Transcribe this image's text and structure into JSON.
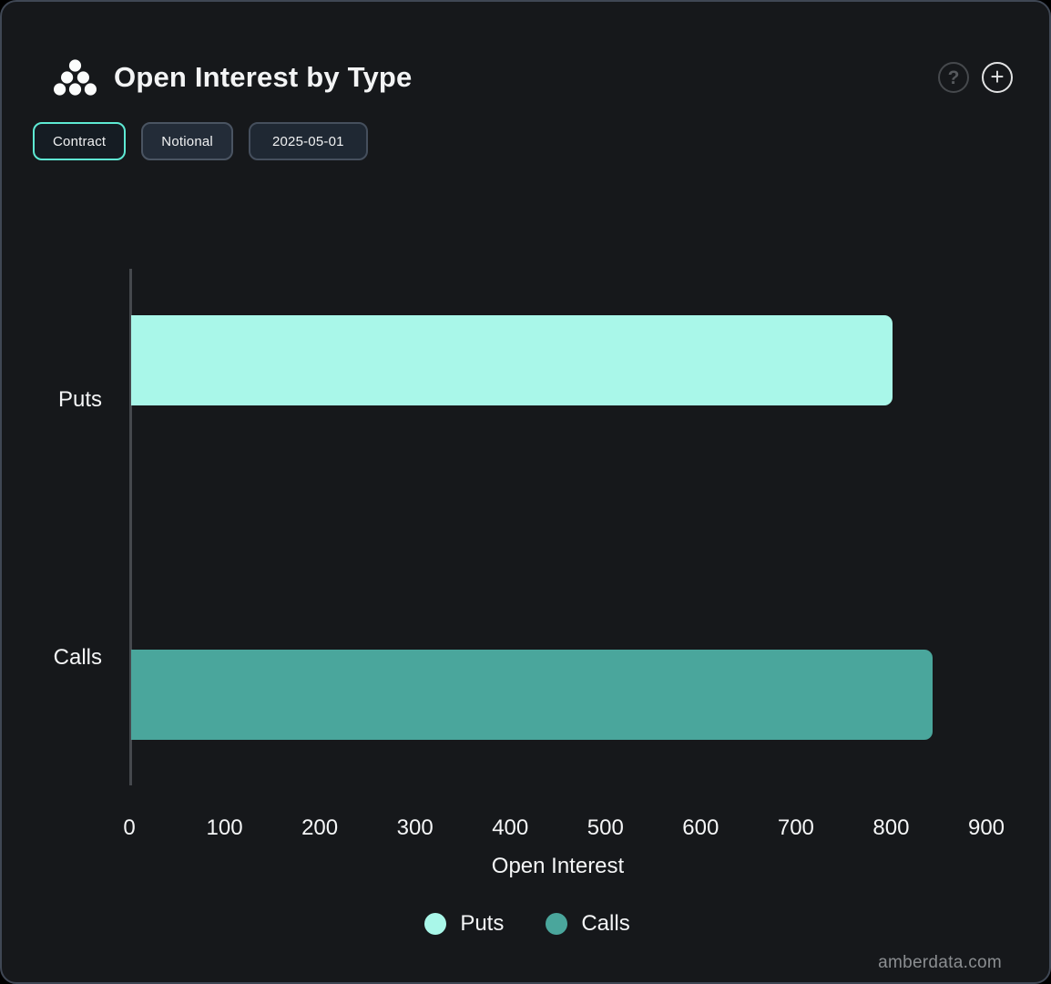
{
  "header": {
    "title": "Open Interest by Type",
    "help_icon": "?",
    "add_icon": "+"
  },
  "controls": {
    "unit_toggle": [
      {
        "label": "Contract",
        "active": true
      },
      {
        "label": "Notional",
        "active": false
      }
    ],
    "date": "2025-05-01"
  },
  "chart_data": {
    "type": "bar",
    "orientation": "horizontal",
    "title": "Open Interest by Type",
    "categories": [
      "Puts",
      "Calls"
    ],
    "values": [
      800,
      842
    ],
    "colors": [
      "#a9f7e9",
      "#4aa69c"
    ],
    "xlabel": "Open Interest",
    "ylabel": "",
    "xlim": [
      0,
      900
    ],
    "xticks": [
      0,
      100,
      200,
      300,
      400,
      500,
      600,
      700,
      800,
      900
    ],
    "grid": false,
    "legend_position": "bottom",
    "legend": [
      {
        "label": "Puts",
        "color": "#a9f7e9"
      },
      {
        "label": "Calls",
        "color": "#4aa69c"
      }
    ]
  },
  "colors": {
    "card_background": "#16181b",
    "card_border": "#3f4754",
    "accent": "#5eead4",
    "puts_bar": "#a9f7e9",
    "calls_bar": "#4aa69c",
    "axis_line": "#45484d"
  },
  "footer": {
    "watermark": "amberdata.com"
  }
}
